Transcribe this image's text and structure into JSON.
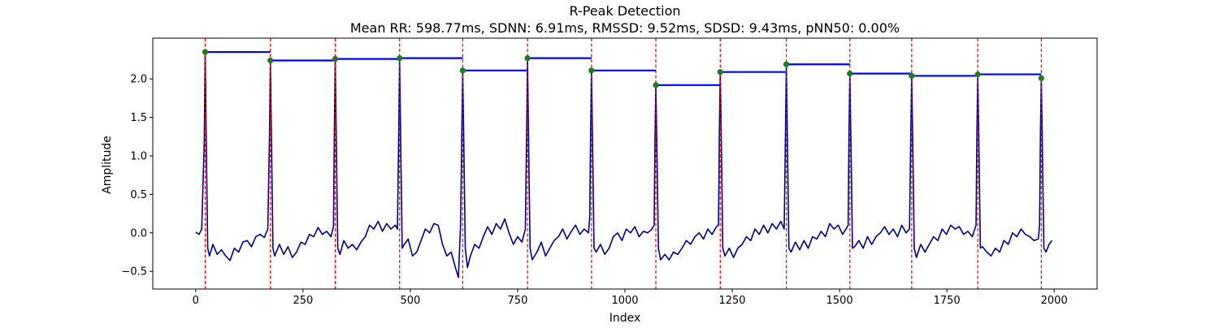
{
  "chart_data": {
    "type": "line",
    "title": "R-Peak Detection",
    "subtitle": "Mean RR: 598.77ms, SDNN: 6.91ms, RMSSD: 9.52ms, SDSD: 9.43ms, pNN50: 0.00%",
    "xlabel": "Index",
    "ylabel": "Amplitude",
    "xlim": [
      -100,
      2100
    ],
    "ylim": [
      -0.73,
      2.53
    ],
    "xticks": [
      0,
      250,
      500,
      750,
      1000,
      1250,
      1500,
      1750,
      2000
    ],
    "yticks": [
      -0.5,
      0.0,
      0.5,
      1.0,
      1.5,
      2.0
    ],
    "grid": false,
    "colors": {
      "signal": "#00008b",
      "peak_marker": "#1e7b1e",
      "peak_line": "#ff0000",
      "rr_segment": "#0000ff"
    },
    "series": [
      {
        "role": "signal",
        "points": [
          [
            0,
            0.01
          ],
          [
            8,
            -0.02
          ],
          [
            14,
            0.05
          ],
          [
            20,
            1.2
          ],
          [
            22,
            2.35
          ],
          [
            25,
            1.0
          ],
          [
            28,
            -0.2
          ],
          [
            32,
            -0.3
          ],
          [
            40,
            -0.15
          ],
          [
            50,
            -0.28
          ],
          [
            60,
            -0.22
          ],
          [
            70,
            -0.3
          ],
          [
            80,
            -0.36
          ],
          [
            90,
            -0.2
          ],
          [
            100,
            -0.25
          ],
          [
            110,
            -0.12
          ],
          [
            120,
            -0.1
          ],
          [
            130,
            -0.18
          ],
          [
            140,
            -0.05
          ],
          [
            150,
            -0.02
          ],
          [
            160,
            -0.06
          ],
          [
            168,
            0.05
          ],
          [
            172,
            1.3
          ],
          [
            174,
            2.24
          ],
          [
            177,
            1.0
          ],
          [
            180,
            -0.2
          ],
          [
            184,
            -0.3
          ],
          [
            195,
            -0.15
          ],
          [
            205,
            -0.28
          ],
          [
            215,
            -0.18
          ],
          [
            225,
            -0.32
          ],
          [
            235,
            -0.25
          ],
          [
            245,
            -0.12
          ],
          [
            255,
            -0.15
          ],
          [
            265,
            -0.02
          ],
          [
            275,
            -0.05
          ],
          [
            285,
            0.07
          ],
          [
            295,
            -0.02
          ],
          [
            305,
            0.02
          ],
          [
            315,
            -0.05
          ],
          [
            321,
            0.08
          ],
          [
            323,
            1.3
          ],
          [
            325,
            2.26
          ],
          [
            328,
            1.0
          ],
          [
            331,
            -0.2
          ],
          [
            336,
            -0.28
          ],
          [
            345,
            -0.1
          ],
          [
            355,
            -0.2
          ],
          [
            365,
            -0.15
          ],
          [
            375,
            -0.22
          ],
          [
            385,
            -0.12
          ],
          [
            395,
            -0.05
          ],
          [
            405,
            0.1
          ],
          [
            415,
            0.05
          ],
          [
            425,
            0.15
          ],
          [
            435,
            0.02
          ],
          [
            445,
            0.12
          ],
          [
            455,
            0.05
          ],
          [
            465,
            0.1
          ],
          [
            470,
            0.05
          ],
          [
            473,
            1.3
          ],
          [
            475,
            2.27
          ],
          [
            478,
            1.0
          ],
          [
            481,
            -0.2
          ],
          [
            486,
            -0.15
          ],
          [
            495,
            -0.08
          ],
          [
            505,
            -0.3
          ],
          [
            515,
            -0.25
          ],
          [
            525,
            -0.1
          ],
          [
            535,
            0.05
          ],
          [
            545,
            0.0
          ],
          [
            555,
            0.12
          ],
          [
            565,
            0.1
          ],
          [
            575,
            -0.15
          ],
          [
            585,
            -0.3
          ],
          [
            595,
            -0.25
          ],
          [
            605,
            -0.45
          ],
          [
            612,
            -0.58
          ],
          [
            617,
            0.1
          ],
          [
            620,
            1.3
          ],
          [
            622,
            2.11
          ],
          [
            625,
            1.0
          ],
          [
            628,
            -0.2
          ],
          [
            633,
            -0.45
          ],
          [
            640,
            -0.3
          ],
          [
            650,
            -0.15
          ],
          [
            660,
            -0.2
          ],
          [
            670,
            -0.05
          ],
          [
            680,
            0.08
          ],
          [
            690,
            -0.02
          ],
          [
            700,
            0.12
          ],
          [
            710,
            0.05
          ],
          [
            720,
            0.18
          ],
          [
            730,
            0.0
          ],
          [
            740,
            -0.15
          ],
          [
            750,
            -0.05
          ],
          [
            760,
            -0.12
          ],
          [
            768,
            0.05
          ],
          [
            771,
            1.3
          ],
          [
            773,
            2.27
          ],
          [
            776,
            1.0
          ],
          [
            779,
            -0.2
          ],
          [
            784,
            -0.35
          ],
          [
            795,
            -0.25
          ],
          [
            805,
            -0.12
          ],
          [
            815,
            -0.3
          ],
          [
            825,
            -0.2
          ],
          [
            835,
            -0.1
          ],
          [
            845,
            -0.05
          ],
          [
            855,
            0.05
          ],
          [
            865,
            -0.08
          ],
          [
            875,
            0.02
          ],
          [
            885,
            0.1
          ],
          [
            895,
            -0.02
          ],
          [
            905,
            0.05
          ],
          [
            915,
            0.0
          ],
          [
            918,
            0.2
          ],
          [
            920,
            1.3
          ],
          [
            922,
            2.11
          ],
          [
            925,
            1.0
          ],
          [
            928,
            -0.2
          ],
          [
            933,
            -0.25
          ],
          [
            943,
            -0.15
          ],
          [
            953,
            -0.28
          ],
          [
            963,
            -0.2
          ],
          [
            973,
            -0.05
          ],
          [
            983,
            0.0
          ],
          [
            993,
            -0.1
          ],
          [
            1003,
            0.05
          ],
          [
            1013,
            0.0
          ],
          [
            1023,
            0.08
          ],
          [
            1033,
            -0.05
          ],
          [
            1043,
            0.02
          ],
          [
            1053,
            0.0
          ],
          [
            1063,
            0.05
          ],
          [
            1068,
            0.1
          ],
          [
            1070,
            1.2
          ],
          [
            1072,
            1.92
          ],
          [
            1075,
            0.9
          ],
          [
            1078,
            -0.2
          ],
          [
            1083,
            -0.35
          ],
          [
            1093,
            -0.28
          ],
          [
            1103,
            -0.35
          ],
          [
            1113,
            -0.25
          ],
          [
            1123,
            -0.28
          ],
          [
            1133,
            -0.2
          ],
          [
            1143,
            -0.1
          ],
          [
            1153,
            -0.15
          ],
          [
            1163,
            -0.05
          ],
          [
            1173,
            0.0
          ],
          [
            1183,
            -0.08
          ],
          [
            1193,
            0.05
          ],
          [
            1203,
            -0.02
          ],
          [
            1213,
            0.08
          ],
          [
            1218,
            0.1
          ],
          [
            1220,
            1.3
          ],
          [
            1222,
            2.09
          ],
          [
            1225,
            1.0
          ],
          [
            1228,
            -0.2
          ],
          [
            1233,
            -0.3
          ],
          [
            1243,
            -0.2
          ],
          [
            1253,
            -0.32
          ],
          [
            1263,
            -0.2
          ],
          [
            1273,
            -0.15
          ],
          [
            1283,
            -0.05
          ],
          [
            1293,
            -0.1
          ],
          [
            1303,
            0.05
          ],
          [
            1313,
            -0.02
          ],
          [
            1323,
            0.1
          ],
          [
            1333,
            0.0
          ],
          [
            1343,
            0.12
          ],
          [
            1353,
            0.05
          ],
          [
            1363,
            0.15
          ],
          [
            1371,
            0.05
          ],
          [
            1374,
            1.3
          ],
          [
            1376,
            2.19
          ],
          [
            1379,
            1.0
          ],
          [
            1382,
            -0.2
          ],
          [
            1387,
            -0.25
          ],
          [
            1397,
            -0.12
          ],
          [
            1407,
            -0.22
          ],
          [
            1417,
            -0.1
          ],
          [
            1427,
            -0.2
          ],
          [
            1437,
            -0.05
          ],
          [
            1447,
            -0.08
          ],
          [
            1457,
            0.02
          ],
          [
            1467,
            -0.05
          ],
          [
            1477,
            0.12
          ],
          [
            1487,
            0.05
          ],
          [
            1497,
            0.1
          ],
          [
            1507,
            -0.02
          ],
          [
            1515,
            0.05
          ],
          [
            1520,
            0.1
          ],
          [
            1522,
            1.3
          ],
          [
            1524,
            2.07
          ],
          [
            1527,
            1.0
          ],
          [
            1530,
            -0.2
          ],
          [
            1535,
            -0.18
          ],
          [
            1545,
            -0.1
          ],
          [
            1555,
            -0.2
          ],
          [
            1565,
            -0.05
          ],
          [
            1575,
            -0.15
          ],
          [
            1585,
            -0.05
          ],
          [
            1595,
            0.0
          ],
          [
            1605,
            0.08
          ],
          [
            1615,
            -0.02
          ],
          [
            1625,
            0.05
          ],
          [
            1635,
            -0.05
          ],
          [
            1645,
            0.1
          ],
          [
            1655,
            0.0
          ],
          [
            1663,
            0.05
          ],
          [
            1666,
            1.3
          ],
          [
            1668,
            2.04
          ],
          [
            1671,
            1.0
          ],
          [
            1674,
            -0.2
          ],
          [
            1679,
            -0.32
          ],
          [
            1689,
            -0.15
          ],
          [
            1699,
            -0.25
          ],
          [
            1709,
            -0.15
          ],
          [
            1719,
            -0.05
          ],
          [
            1729,
            -0.1
          ],
          [
            1739,
            0.05
          ],
          [
            1749,
            -0.02
          ],
          [
            1759,
            0.1
          ],
          [
            1769,
            0.05
          ],
          [
            1779,
            0.08
          ],
          [
            1789,
            -0.02
          ],
          [
            1799,
            0.02
          ],
          [
            1809,
            -0.05
          ],
          [
            1818,
            0.1
          ],
          [
            1820,
            1.3
          ],
          [
            1822,
            2.06
          ],
          [
            1825,
            1.0
          ],
          [
            1828,
            -0.2
          ],
          [
            1833,
            -0.18
          ],
          [
            1843,
            -0.25
          ],
          [
            1853,
            -0.3
          ],
          [
            1863,
            -0.2
          ],
          [
            1873,
            -0.25
          ],
          [
            1883,
            -0.1
          ],
          [
            1893,
            -0.15
          ],
          [
            1903,
            0.0
          ],
          [
            1913,
            -0.05
          ],
          [
            1923,
            0.05
          ],
          [
            1933,
            -0.02
          ],
          [
            1943,
            -0.05
          ],
          [
            1953,
            -0.1
          ],
          [
            1963,
            -0.08
          ],
          [
            1966,
            0.1
          ],
          [
            1968,
            1.3
          ],
          [
            1970,
            2.01
          ],
          [
            1973,
            0.9
          ],
          [
            1976,
            -0.2
          ],
          [
            1981,
            -0.25
          ],
          [
            1988,
            -0.15
          ],
          [
            1995,
            -0.1
          ]
        ]
      },
      {
        "role": "r_peaks",
        "x": [
          22,
          174,
          325,
          475,
          622,
          773,
          922,
          1072,
          1222,
          1376,
          1524,
          1668,
          1822,
          1970
        ],
        "y": [
          2.35,
          2.24,
          2.26,
          2.27,
          2.11,
          2.27,
          2.11,
          1.92,
          2.09,
          2.19,
          2.07,
          2.04,
          2.06,
          2.01
        ]
      },
      {
        "role": "rr_intervals",
        "segments": [
          [
            22,
            174,
            2.35
          ],
          [
            174,
            325,
            2.24
          ],
          [
            325,
            475,
            2.26
          ],
          [
            475,
            622,
            2.27
          ],
          [
            622,
            773,
            2.11
          ],
          [
            773,
            922,
            2.27
          ],
          [
            922,
            1072,
            2.11
          ],
          [
            1072,
            1222,
            1.92
          ],
          [
            1222,
            1376,
            2.09
          ],
          [
            1376,
            1524,
            2.19
          ],
          [
            1524,
            1668,
            2.07
          ],
          [
            1668,
            1822,
            2.04
          ],
          [
            1822,
            1970,
            2.06
          ]
        ]
      }
    ]
  }
}
